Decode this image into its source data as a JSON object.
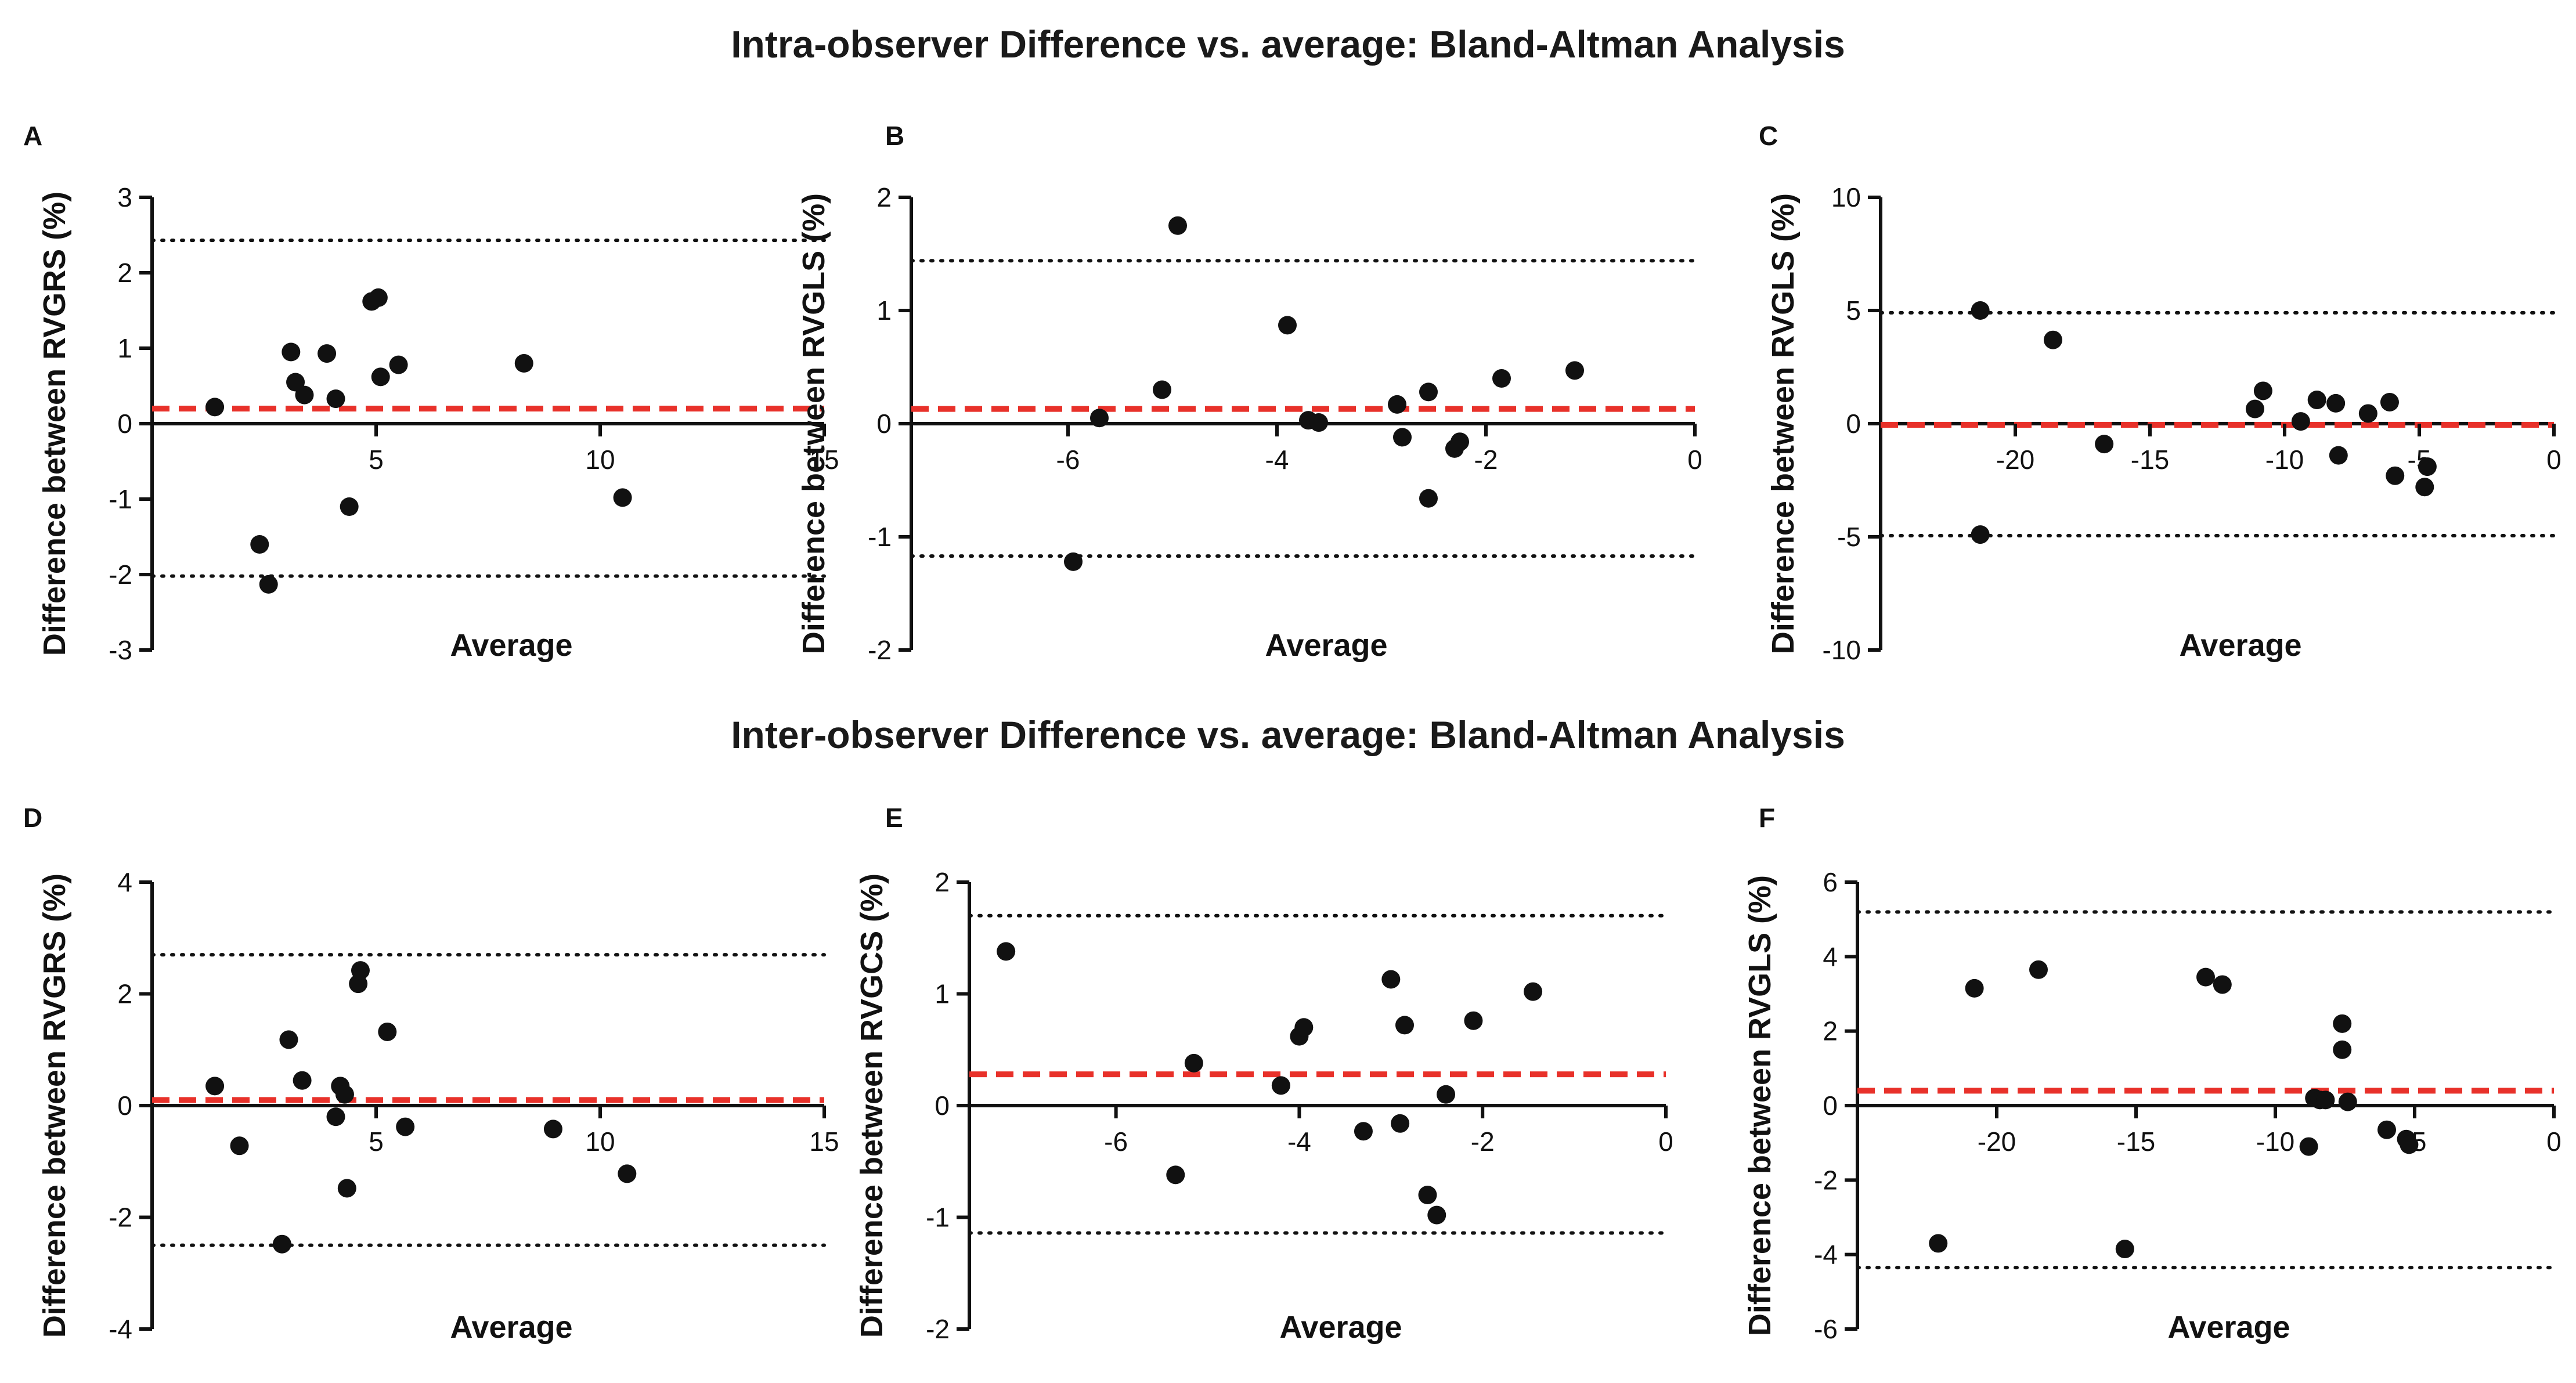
{
  "figure": {
    "row_titles": [
      "Intra-observer Difference vs. average: Bland-Altman Analysis",
      "Inter-observer Difference vs. average: Bland-Altman Analysis"
    ]
  },
  "colors": {
    "points": "#111111",
    "axes": "#111111",
    "mean_line": "#e8312a",
    "loa_line": "#111111"
  },
  "chart_data": [
    {
      "panel": "A",
      "type": "scatter",
      "ylabel": "Difference between RVGRS (%)",
      "xlabel": "Average",
      "xlim": [
        0,
        15
      ],
      "ylim": [
        -3,
        3
      ],
      "xticks": [
        5,
        10,
        15
      ],
      "xtick_labels": [
        "5",
        "10",
        "15"
      ],
      "yticks": [
        -3,
        -2,
        -1,
        0,
        1,
        2,
        3
      ],
      "ytick_labels": [
        "-3",
        "-2",
        "-1",
        "0",
        "1",
        "2",
        "3"
      ],
      "mean": 0.2,
      "upper_loa": 2.43,
      "lower_loa": -2.02,
      "x": [
        1.4,
        2.4,
        2.6,
        3.1,
        3.2,
        3.4,
        3.9,
        4.1,
        4.4,
        4.9,
        5.05,
        5.1,
        5.5,
        8.3,
        10.5
      ],
      "y": [
        0.22,
        -1.6,
        -2.13,
        0.95,
        0.55,
        0.38,
        0.93,
        0.33,
        -1.1,
        1.62,
        1.67,
        0.62,
        0.78,
        0.8,
        -0.98
      ]
    },
    {
      "panel": "B",
      "type": "scatter",
      "ylabel": "Difference between RVGLS (%)",
      "xlabel": "Average",
      "xlim": [
        -7.5,
        0
      ],
      "ylim": [
        -2,
        2
      ],
      "xticks": [
        -6,
        -4,
        -2,
        0
      ],
      "xtick_labels": [
        "-6",
        "-4",
        "-2",
        "0"
      ],
      "yticks": [
        -2,
        -1,
        0,
        1,
        2
      ],
      "ytick_labels": [
        "-2",
        "-1",
        "0",
        "1",
        "2"
      ],
      "mean": 0.13,
      "upper_loa": 1.44,
      "lower_loa": -1.17,
      "x": [
        -5.95,
        -5.7,
        -5.1,
        -4.95,
        -3.9,
        -3.7,
        -3.6,
        -2.85,
        -2.8,
        -2.55,
        -2.55,
        -2.3,
        -2.25,
        -1.85,
        -1.15
      ],
      "y": [
        -1.22,
        0.05,
        0.3,
        1.75,
        0.87,
        0.03,
        0.01,
        0.17,
        -0.12,
        0.28,
        -0.66,
        -0.22,
        -0.16,
        0.4,
        0.47
      ]
    },
    {
      "panel": "C",
      "type": "scatter",
      "ylabel": "Difference between RVGLS (%)",
      "xlabel": "Average",
      "xlim": [
        -25,
        0
      ],
      "ylim": [
        -10,
        10
      ],
      "xticks": [
        -20,
        -15,
        -10,
        -5,
        0
      ],
      "xtick_labels": [
        "-20",
        "-15",
        "-10",
        "-5",
        "0"
      ],
      "yticks": [
        -10,
        -5,
        0,
        5,
        10
      ],
      "ytick_labels": [
        "-10",
        "-5",
        "0",
        "5",
        "10"
      ],
      "mean": -0.05,
      "upper_loa": 4.9,
      "lower_loa": -4.95,
      "x": [
        -21.3,
        -21.3,
        -18.6,
        -16.7,
        -11.1,
        -10.8,
        -9.4,
        -8.8,
        -8.0,
        -8.1,
        -6.9,
        -6.1,
        -5.9,
        -4.8,
        -4.7
      ],
      "y": [
        5.0,
        -4.9,
        3.7,
        -0.9,
        0.65,
        1.45,
        0.1,
        1.05,
        -1.4,
        0.9,
        0.45,
        0.95,
        -2.3,
        -2.8,
        -1.9
      ]
    },
    {
      "panel": "D",
      "type": "scatter",
      "ylabel": "Difference between RVGRS (%)",
      "xlabel": "Average",
      "xlim": [
        0,
        15
      ],
      "ylim": [
        -4,
        4
      ],
      "xticks": [
        5,
        10,
        15
      ],
      "xtick_labels": [
        "5",
        "10",
        "15"
      ],
      "yticks": [
        -4,
        -2,
        0,
        2,
        4
      ],
      "ytick_labels": [
        "-4",
        "-2",
        "0",
        "2",
        "4"
      ],
      "mean": 0.1,
      "upper_loa": 2.7,
      "lower_loa": -2.5,
      "x": [
        1.4,
        1.95,
        2.9,
        3.05,
        3.35,
        4.1,
        4.2,
        4.3,
        4.35,
        4.6,
        4.65,
        5.25,
        5.65,
        8.95,
        10.6
      ],
      "y": [
        0.35,
        -0.72,
        -2.48,
        1.18,
        0.45,
        -0.2,
        0.35,
        0.2,
        -1.48,
        2.18,
        2.42,
        1.32,
        -0.38,
        -0.42,
        -1.22
      ]
    },
    {
      "panel": "E",
      "type": "scatter",
      "ylabel": "Difference between RVGCS (%)",
      "xlabel": "Average",
      "xlim": [
        -7.6,
        0
      ],
      "ylim": [
        -2,
        2
      ],
      "xticks": [
        -6,
        -4,
        -2,
        0
      ],
      "xtick_labels": [
        "-6",
        "-4",
        "-2",
        "0"
      ],
      "yticks": [
        -2,
        -1,
        0,
        1,
        2
      ],
      "ytick_labels": [
        "-2",
        "-1",
        "0",
        "1",
        "2"
      ],
      "mean": 0.28,
      "upper_loa": 1.7,
      "lower_loa": -1.14,
      "x": [
        -7.2,
        -5.35,
        -5.15,
        -4.2,
        -4.0,
        -3.95,
        -3.3,
        -3.0,
        -2.9,
        -2.85,
        -2.6,
        -2.5,
        -2.4,
        -2.1,
        -1.45
      ],
      "y": [
        1.38,
        -0.62,
        0.38,
        0.18,
        0.62,
        0.7,
        -0.23,
        1.13,
        -0.16,
        0.72,
        -0.8,
        -0.98,
        0.1,
        0.76,
        1.02
      ]
    },
    {
      "panel": "F",
      "type": "scatter",
      "ylabel": "Difference between RVGLS (%)",
      "xlabel": "Average",
      "xlim": [
        -25,
        0
      ],
      "ylim": [
        -6,
        6
      ],
      "xticks": [
        -20,
        -15,
        -10,
        -5,
        0
      ],
      "xtick_labels": [
        "-20",
        "-15",
        "-10",
        "-5",
        "0"
      ],
      "yticks": [
        -6,
        -4,
        -2,
        0,
        2,
        4,
        6
      ],
      "ytick_labels": [
        "-6",
        "-4",
        "-2",
        "0",
        "2",
        "4",
        "6"
      ],
      "mean": 0.4,
      "upper_loa": 5.2,
      "lower_loa": -4.35,
      "x": [
        -22.1,
        -20.8,
        -18.5,
        -15.4,
        -12.5,
        -11.9,
        -8.8,
        -8.6,
        -8.4,
        -8.2,
        -7.6,
        -7.6,
        -7.4,
        -6.0,
        -5.3,
        -5.2
      ],
      "y": [
        -3.7,
        3.15,
        3.65,
        -3.85,
        3.45,
        3.25,
        -1.1,
        0.2,
        0.15,
        0.15,
        2.2,
        1.5,
        0.1,
        -0.65,
        -0.9,
        -1.05
      ]
    }
  ]
}
